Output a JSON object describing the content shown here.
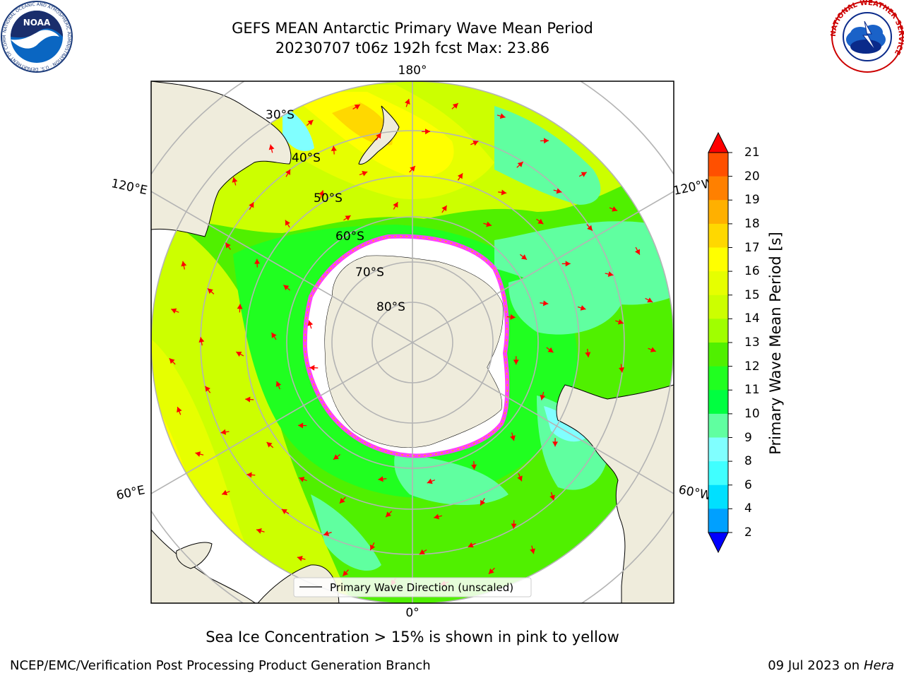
{
  "title_line1": "GEFS MEAN Antarctic Primary Wave Mean Period",
  "title_line2": "20230707 t06z 192h fcst   Max: 23.86",
  "lon_labels": {
    "top": "180°",
    "bottom": "0°",
    "left_upper": "120°E",
    "left_lower": "60°E",
    "right_upper": "120°W",
    "right_lower": "60°W"
  },
  "lat_labels": [
    "30°S",
    "40°S",
    "50°S",
    "60°S",
    "70°S",
    "80°S"
  ],
  "legend_label": "Primary Wave Direction (unscaled)",
  "colorbar": {
    "label": "Primary Wave Mean Period [s]",
    "ticks": [
      "21",
      "20",
      "19",
      "18",
      "17",
      "16",
      "15",
      "14",
      "13",
      "12",
      "11",
      "10",
      "9",
      "8",
      "6",
      "4",
      "2"
    ],
    "colors": [
      "#ff2000",
      "#ff5000",
      "#ff8000",
      "#ffb000",
      "#ffd800",
      "#ffff00",
      "#e6ff00",
      "#ccff00",
      "#a0ff00",
      "#50f000",
      "#20ff20",
      "#00ff40",
      "#60ffa0",
      "#80ffff",
      "#40ffff",
      "#00e0ff",
      "#00a0ff",
      "#0060ff"
    ],
    "under_color": "#0000ff",
    "over_color": "#ff0000"
  },
  "caption": "Sea Ice Concentration > 15% is shown in pink to yellow",
  "footer_left": "NCEP/EMC/Verification Post Processing Product Generation Branch",
  "footer_right_date": "09 Jul 2023 on ",
  "footer_right_host": "Hera",
  "logo_left": {
    "text": "NOAA",
    "ring_text": "NATIONAL OCEANIC AND ATMOSPHERIC ADMINISTRATION · U.S. DEPARTMENT OF COMMERCE"
  },
  "logo_right": {
    "ring_text": "NATIONAL WEATHER SERVICE"
  },
  "colors": {
    "land": "#efecdc",
    "ice": "#ffffff",
    "arrow": "#ff0000",
    "grid": "#b4b4b4"
  }
}
